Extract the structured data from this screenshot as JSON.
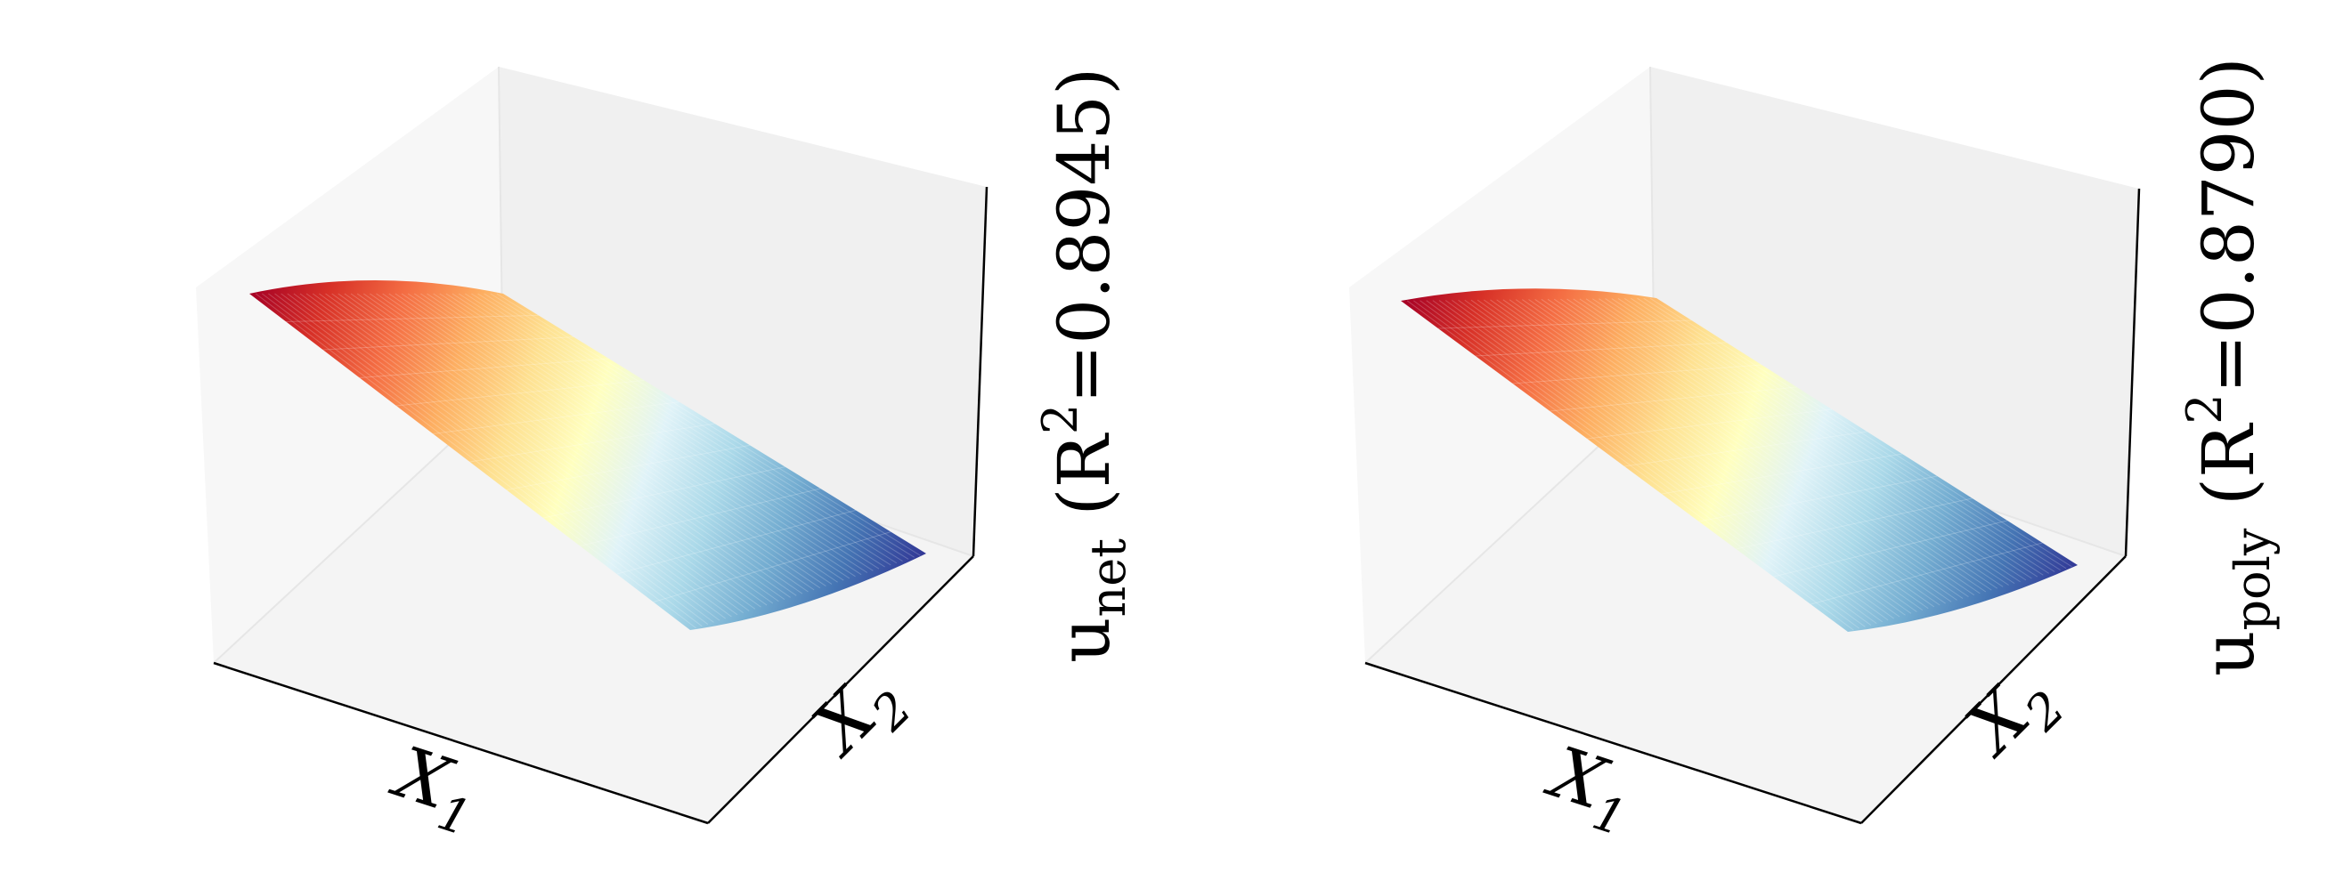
{
  "chart_data": [
    {
      "type": "surface3d",
      "xlabel": "X",
      "xlabel_sub": "1",
      "ylabel": "X",
      "ylabel_sub": "2",
      "zlabel": "u",
      "zlabel_sub": "net",
      "zlabel_suffix_open": " (R",
      "zlabel_sup": "2",
      "zlabel_suffix_close": "=0.8945)",
      "r2": 0.8945,
      "colormap": "RdYlBu",
      "colors": [
        "#a50026",
        "#d73027",
        "#f46d43",
        "#fdae61",
        "#fee090",
        "#ffffbf",
        "#e0f3f8",
        "#abd9e9",
        "#74add1",
        "#4575b4",
        "#313695"
      ],
      "grid": false,
      "ticks": false
    },
    {
      "type": "surface3d",
      "xlabel": "X",
      "xlabel_sub": "1",
      "ylabel": "X",
      "ylabel_sub": "2",
      "zlabel": "u",
      "zlabel_sub": "poly",
      "zlabel_suffix_open": " (R",
      "zlabel_sup": "2",
      "zlabel_suffix_close": "=0.8790)",
      "r2": 0.879,
      "colormap": "RdYlBu",
      "colors": [
        "#a50026",
        "#d73027",
        "#f46d43",
        "#fdae61",
        "#fee090",
        "#ffffbf",
        "#e0f3f8",
        "#abd9e9",
        "#74add1",
        "#4575b4",
        "#313695"
      ],
      "grid": false,
      "ticks": false
    }
  ]
}
